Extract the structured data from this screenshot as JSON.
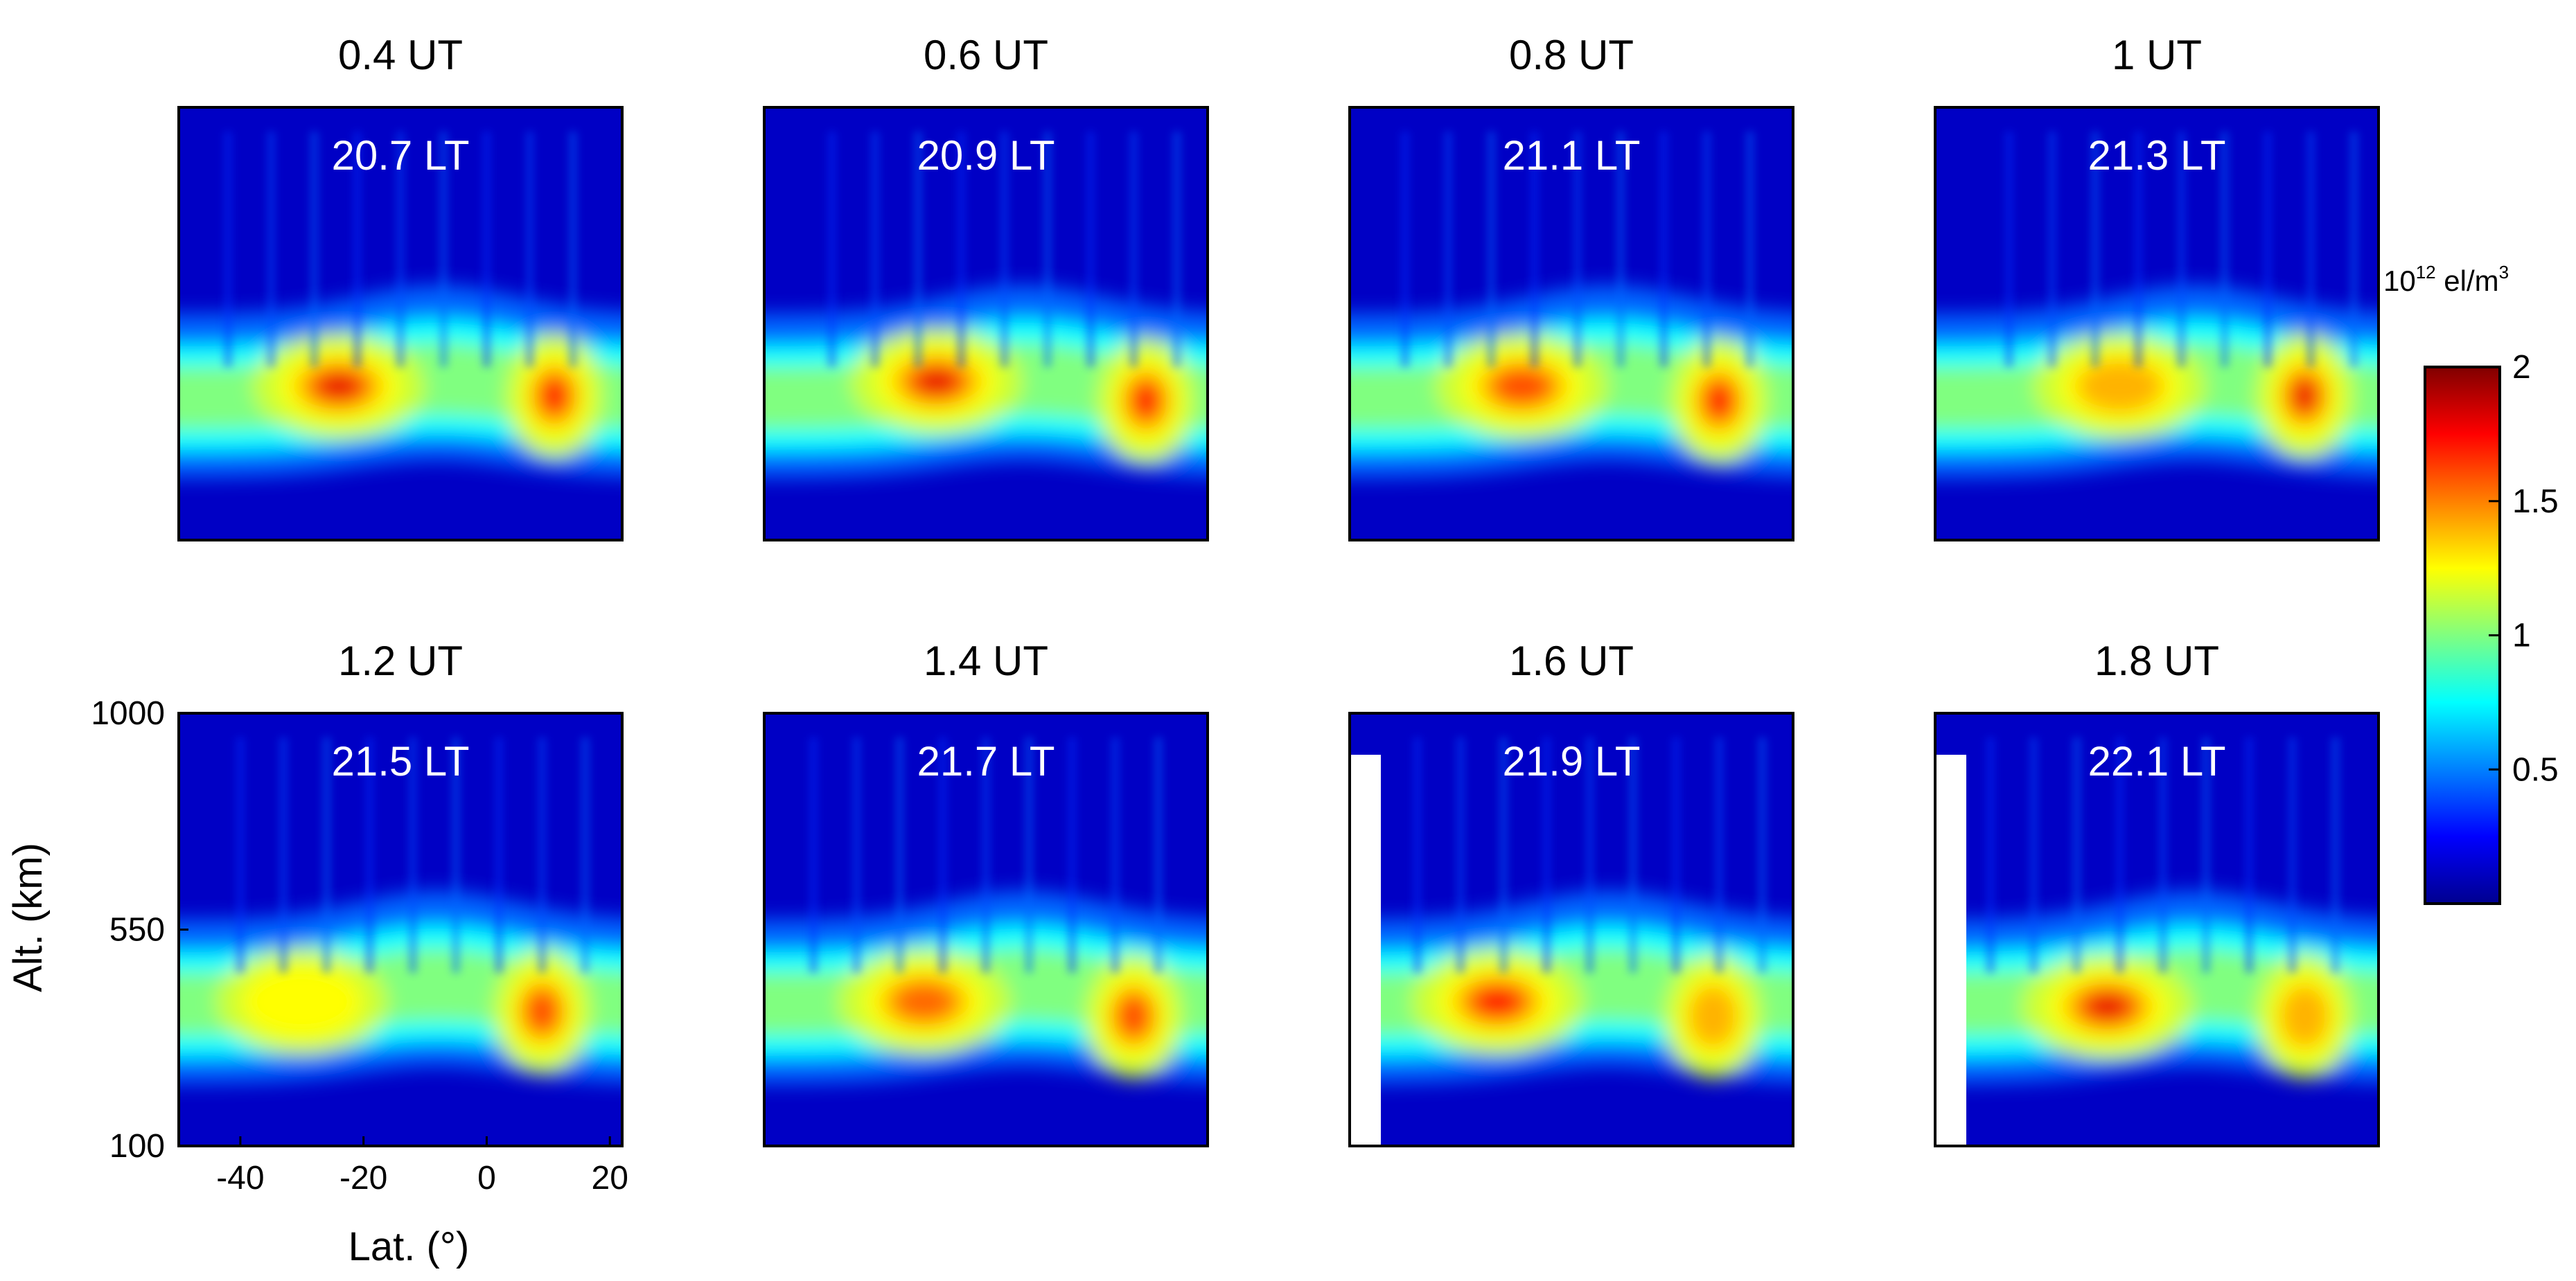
{
  "colors": {
    "jet_stops": [
      "#00008f",
      "#0000ff",
      "#0080ff",
      "#00ffff",
      "#80ff80",
      "#ffff00",
      "#ff8000",
      "#ff0000",
      "#800000"
    ]
  },
  "chart_data": {
    "type": "heatmap",
    "xlabel": "Lat. (°)",
    "ylabel": "Alt. (km)",
    "xlim": [
      -50,
      22
    ],
    "ylim": [
      100,
      1000
    ],
    "xticks": [
      {
        "value": -40,
        "label": "-40"
      },
      {
        "value": -20,
        "label": "-20"
      },
      {
        "value": 0,
        "label": "0"
      },
      {
        "value": 20,
        "label": "20"
      }
    ],
    "yticks": [
      {
        "value": 100,
        "label": "100"
      },
      {
        "value": 550,
        "label": "550"
      },
      {
        "value": 1000,
        "label": "1000"
      }
    ],
    "colorbar": {
      "unit_base": "10",
      "unit_exp": "12",
      "unit_rest": " el/m",
      "unit_exp2": "3",
      "range": [
        0,
        2
      ],
      "ticks": [
        {
          "value": 0.5,
          "label": "0.5"
        },
        {
          "value": 1,
          "label": "1"
        },
        {
          "value": 1.5,
          "label": "1.5"
        },
        {
          "value": 2,
          "label": "2"
        }
      ]
    },
    "panels": [
      {
        "ut": "0.4 UT",
        "lt": "20.7 LT",
        "sa": {
          "lat": -24,
          "alt": 420,
          "amp": 1.95
        },
        "na": {
          "lat": 11,
          "alt": 400,
          "amp": 1.75
        },
        "blank_left": 0
      },
      {
        "ut": "0.6 UT",
        "lt": "20.9 LT",
        "sa": {
          "lat": -22,
          "alt": 430,
          "amp": 2.0
        },
        "na": {
          "lat": 12,
          "alt": 390,
          "amp": 1.75
        },
        "blank_left": 0
      },
      {
        "ut": "0.8 UT",
        "lt": "21.1 LT",
        "sa": {
          "lat": -22,
          "alt": 420,
          "amp": 1.7
        },
        "na": {
          "lat": 10,
          "alt": 390,
          "amp": 1.75
        },
        "blank_left": 0
      },
      {
        "ut": "1 UT",
        "lt": "21.3 LT",
        "sa": {
          "lat": -20,
          "alt": 420,
          "amp": 1.4
        },
        "na": {
          "lat": 10,
          "alt": 400,
          "amp": 1.8
        },
        "blank_left": 0
      },
      {
        "ut": "1.2 UT",
        "lt": "21.5 LT",
        "sa": {
          "lat": -30,
          "alt": 400,
          "amp": 1.25
        },
        "na": {
          "lat": 9,
          "alt": 380,
          "amp": 1.65
        },
        "blank_left": 0
      },
      {
        "ut": "1.4 UT",
        "lt": "21.7 LT",
        "sa": {
          "lat": -24,
          "alt": 400,
          "amp": 1.55
        },
        "na": {
          "lat": 10,
          "alt": 370,
          "amp": 1.6
        },
        "blank_left": 0
      },
      {
        "ut": "1.6 UT",
        "lt": "21.9 LT",
        "sa": {
          "lat": -26,
          "alt": 400,
          "amp": 1.75
        },
        "na": {
          "lat": 9,
          "alt": 370,
          "amp": 1.5
        },
        "blank_left": 1
      },
      {
        "ut": "1.8 UT",
        "lt": "22.1 LT",
        "sa": {
          "lat": -22,
          "alt": 390,
          "amp": 2.0
        },
        "na": {
          "lat": 10,
          "alt": 370,
          "amp": 1.4
        },
        "blank_left": 1
      }
    ]
  }
}
